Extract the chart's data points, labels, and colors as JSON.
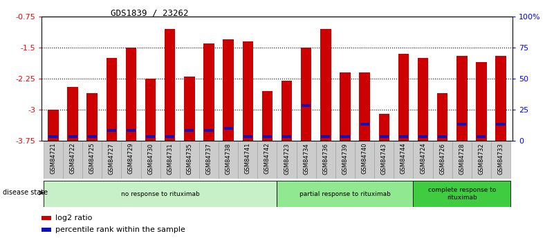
{
  "title": "GDS1839 / 23262",
  "samples": [
    "GSM84721",
    "GSM84722",
    "GSM84725",
    "GSM84727",
    "GSM84729",
    "GSM84730",
    "GSM84731",
    "GSM84735",
    "GSM84737",
    "GSM84738",
    "GSM84741",
    "GSM84742",
    "GSM84723",
    "GSM84734",
    "GSM84736",
    "GSM84739",
    "GSM84740",
    "GSM84743",
    "GSM84744",
    "GSM84724",
    "GSM84726",
    "GSM84728",
    "GSM84732",
    "GSM84733"
  ],
  "log2_values": [
    -3.0,
    -2.45,
    -2.6,
    -1.75,
    -1.5,
    -2.25,
    -1.05,
    -2.2,
    -1.4,
    -1.3,
    -1.35,
    -2.55,
    -2.3,
    -1.5,
    -1.05,
    -2.1,
    -2.1,
    -3.1,
    -1.65,
    -1.75,
    -2.6,
    -1.7,
    -1.85,
    -1.7
  ],
  "percentile_values": [
    3,
    3,
    3,
    8,
    8,
    3,
    3,
    8,
    8,
    10,
    3,
    3,
    3,
    28,
    3,
    3,
    13,
    3,
    3,
    3,
    3,
    13,
    3,
    13
  ],
  "bar_color": "#cc0000",
  "blue_color": "#1111bb",
  "ymin": -3.75,
  "ymax": -0.75,
  "yticks_left": [
    -3.75,
    -3.0,
    -2.25,
    -1.5,
    -0.75
  ],
  "ytick_labels_left": [
    "-3.75",
    "-3",
    "-2.25",
    "-1.5",
    "-0.75"
  ],
  "yticks_right": [
    0,
    25,
    50,
    75,
    100
  ],
  "ytick_labels_right": [
    "0",
    "25",
    "50",
    "75",
    "100%"
  ],
  "grid_values": [
    -3.0,
    -2.25,
    -1.5
  ],
  "groups": [
    {
      "label": "no response to rituximab",
      "start": 0,
      "end": 11,
      "color": "#c8f0c8"
    },
    {
      "label": "partial response to rituximab",
      "start": 12,
      "end": 18,
      "color": "#90e890"
    },
    {
      "label": "complete response to\nrituximab",
      "start": 19,
      "end": 23,
      "color": "#40cc40"
    }
  ],
  "disease_state_label": "disease state",
  "legend_red_label": "log2 ratio",
  "legend_blue_label": "percentile rank within the sample",
  "bar_width": 0.55,
  "tick_bg_color": "#cccccc"
}
